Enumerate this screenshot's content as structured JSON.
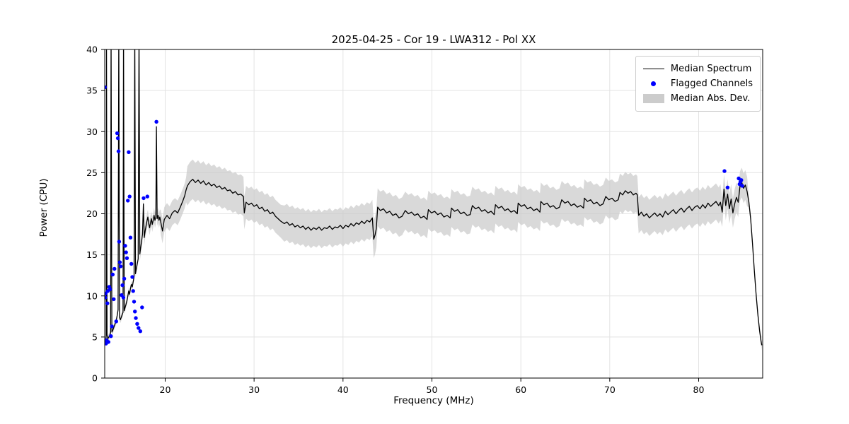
{
  "chart_data": {
    "type": "line",
    "title": "2025-04-25 - Cor 19 - LWA312 - Pol XX",
    "xlabel": "Frequency (MHz)",
    "ylabel": "Power (CPU)",
    "xlim": [
      13.2,
      87.2
    ],
    "ylim": [
      0,
      40
    ],
    "xticks": [
      20,
      30,
      40,
      50,
      60,
      70,
      80
    ],
    "yticks": [
      0,
      5,
      10,
      15,
      20,
      25,
      30,
      35,
      40
    ],
    "grid": true,
    "legend_position": "upper right",
    "colors": {
      "spectrum": "#000000",
      "flagged": "#0000ff",
      "band": "#c9c9c9",
      "grid": "#e3e3e3",
      "frame": "#000000"
    },
    "series": [
      {
        "name": "Median Spectrum",
        "type": "line"
      },
      {
        "name": "Flagged Channels",
        "type": "scatter"
      },
      {
        "name": "Median Abs. Dev.",
        "type": "band"
      }
    ],
    "spectrum_points": [
      [
        13.2,
        4.3
      ],
      [
        13.3,
        4.6
      ],
      [
        13.36,
        5.0
      ],
      [
        13.4,
        42
      ],
      [
        13.46,
        5.2
      ],
      [
        13.56,
        4.8
      ],
      [
        13.66,
        5.0
      ],
      [
        13.76,
        5.2
      ],
      [
        13.86,
        5.5
      ],
      [
        13.92,
        42
      ],
      [
        14.0,
        5.6
      ],
      [
        14.1,
        5.8
      ],
      [
        14.2,
        6.1
      ],
      [
        14.3,
        6.4
      ],
      [
        14.4,
        6.7
      ],
      [
        14.5,
        7.0
      ],
      [
        14.6,
        7.6
      ],
      [
        14.7,
        8.3
      ],
      [
        14.78,
        42
      ],
      [
        14.86,
        7.4
      ],
      [
        14.96,
        7.1
      ],
      [
        15.06,
        7.4
      ],
      [
        15.16,
        7.7
      ],
      [
        15.26,
        8.0
      ],
      [
        15.32,
        42
      ],
      [
        15.4,
        8.2
      ],
      [
        15.5,
        8.6
      ],
      [
        15.6,
        9.0
      ],
      [
        15.7,
        9.4
      ],
      [
        15.8,
        10.0
      ],
      [
        15.9,
        10.6
      ],
      [
        16.0,
        10.2
      ],
      [
        16.1,
        10.9
      ],
      [
        16.2,
        11.4
      ],
      [
        16.3,
        11.1
      ],
      [
        16.4,
        11.7
      ],
      [
        16.5,
        12.3
      ],
      [
        16.58,
        42
      ],
      [
        16.66,
        12.7
      ],
      [
        16.76,
        13.3
      ],
      [
        16.86,
        13.9
      ],
      [
        16.96,
        14.5
      ],
      [
        17.06,
        42
      ],
      [
        17.15,
        15.1
      ],
      [
        17.25,
        15.9
      ],
      [
        17.35,
        16.7
      ],
      [
        17.45,
        17.5
      ],
      [
        17.55,
        21.2
      ],
      [
        17.65,
        17.1
      ],
      [
        17.75,
        17.9
      ],
      [
        17.85,
        18.5
      ],
      [
        17.95,
        19.1
      ],
      [
        18.05,
        19.6
      ],
      [
        18.15,
        18.8
      ],
      [
        18.25,
        18.3
      ],
      [
        18.35,
        18.9
      ],
      [
        18.45,
        19.4
      ],
      [
        18.55,
        18.7
      ],
      [
        18.65,
        19.2
      ],
      [
        18.75,
        19.8
      ],
      [
        18.85,
        19.2
      ],
      [
        18.95,
        19.6
      ],
      [
        19.02,
        30.6
      ],
      [
        19.1,
        19.4
      ],
      [
        19.2,
        19.8
      ],
      [
        19.3,
        19.2
      ],
      [
        19.4,
        19.6
      ],
      [
        19.5,
        19.0
      ],
      [
        19.7,
        17.9
      ],
      [
        19.9,
        19.3
      ],
      [
        20.2,
        19.8
      ],
      [
        20.5,
        19.4
      ],
      [
        20.8,
        20.1
      ],
      [
        21.1,
        20.4
      ],
      [
        21.4,
        20.1
      ],
      [
        21.7,
        20.8
      ],
      [
        22.0,
        21.6
      ],
      [
        22.2,
        22.2
      ],
      [
        22.35,
        22.9
      ],
      [
        22.5,
        23.4
      ],
      [
        22.8,
        23.9
      ],
      [
        23.1,
        24.2
      ],
      [
        23.4,
        23.8
      ],
      [
        23.7,
        24.1
      ],
      [
        24.0,
        23.7
      ],
      [
        24.3,
        24.0
      ],
      [
        24.6,
        23.5
      ],
      [
        24.9,
        23.8
      ],
      [
        25.2,
        23.4
      ],
      [
        25.5,
        23.6
      ],
      [
        25.8,
        23.2
      ],
      [
        26.1,
        23.4
      ],
      [
        26.4,
        23.0
      ],
      [
        26.7,
        23.2
      ],
      [
        27.0,
        22.8
      ],
      [
        27.3,
        22.9
      ],
      [
        27.6,
        22.5
      ],
      [
        27.9,
        22.7
      ],
      [
        28.2,
        22.3
      ],
      [
        28.5,
        22.4
      ],
      [
        28.8,
        22.1
      ],
      [
        28.9,
        20.1
      ],
      [
        29.1,
        21.4
      ],
      [
        29.4,
        21.1
      ],
      [
        29.7,
        21.3
      ],
      [
        30.0,
        20.9
      ],
      [
        30.3,
        21.1
      ],
      [
        30.6,
        20.6
      ],
      [
        30.9,
        20.8
      ],
      [
        31.2,
        20.3
      ],
      [
        31.5,
        20.5
      ],
      [
        31.8,
        20.0
      ],
      [
        32.1,
        20.2
      ],
      [
        32.4,
        19.7
      ],
      [
        32.7,
        19.4
      ],
      [
        33.0,
        19.1
      ],
      [
        33.4,
        18.8
      ],
      [
        33.7,
        19.0
      ],
      [
        34.0,
        18.6
      ],
      [
        34.3,
        18.8
      ],
      [
        34.6,
        18.4
      ],
      [
        34.9,
        18.6
      ],
      [
        35.2,
        18.3
      ],
      [
        35.5,
        18.5
      ],
      [
        35.8,
        18.1
      ],
      [
        36.1,
        18.4
      ],
      [
        36.4,
        18.0
      ],
      [
        36.7,
        18.3
      ],
      [
        37.0,
        18.1
      ],
      [
        37.3,
        18.4
      ],
      [
        37.6,
        18.0
      ],
      [
        37.9,
        18.3
      ],
      [
        38.2,
        18.2
      ],
      [
        38.5,
        18.5
      ],
      [
        38.8,
        18.1
      ],
      [
        39.1,
        18.4
      ],
      [
        39.4,
        18.3
      ],
      [
        39.7,
        18.6
      ],
      [
        40.0,
        18.2
      ],
      [
        40.3,
        18.6
      ],
      [
        40.6,
        18.4
      ],
      [
        40.9,
        18.8
      ],
      [
        41.2,
        18.5
      ],
      [
        41.5,
        18.9
      ],
      [
        41.8,
        18.7
      ],
      [
        42.1,
        19.1
      ],
      [
        42.4,
        18.8
      ],
      [
        42.7,
        19.2
      ],
      [
        43.0,
        19.0
      ],
      [
        43.3,
        19.5
      ],
      [
        43.45,
        16.9
      ],
      [
        43.6,
        17.4
      ],
      [
        43.75,
        18.2
      ],
      [
        43.9,
        20.8
      ],
      [
        44.2,
        20.4
      ],
      [
        44.55,
        20.6
      ],
      [
        44.9,
        20.1
      ],
      [
        45.25,
        20.3
      ],
      [
        45.6,
        19.8
      ],
      [
        45.95,
        20.0
      ],
      [
        46.3,
        19.5
      ],
      [
        46.65,
        19.7
      ],
      [
        47.0,
        20.4
      ],
      [
        47.35,
        20.0
      ],
      [
        47.7,
        20.2
      ],
      [
        48.05,
        19.8
      ],
      [
        48.4,
        20.0
      ],
      [
        48.75,
        19.5
      ],
      [
        49.1,
        19.7
      ],
      [
        49.45,
        19.3
      ],
      [
        49.6,
        20.5
      ],
      [
        49.95,
        20.1
      ],
      [
        50.3,
        20.3
      ],
      [
        50.65,
        19.9
      ],
      [
        51.0,
        20.1
      ],
      [
        51.35,
        19.6
      ],
      [
        51.7,
        19.8
      ],
      [
        52.05,
        19.5
      ],
      [
        52.2,
        20.7
      ],
      [
        52.55,
        20.3
      ],
      [
        52.9,
        20.5
      ],
      [
        53.25,
        20.0
      ],
      [
        53.6,
        20.2
      ],
      [
        53.95,
        19.8
      ],
      [
        54.3,
        19.9
      ],
      [
        54.55,
        21.0
      ],
      [
        54.9,
        20.6
      ],
      [
        55.25,
        20.8
      ],
      [
        55.6,
        20.3
      ],
      [
        55.95,
        20.5
      ],
      [
        56.3,
        20.1
      ],
      [
        56.65,
        20.3
      ],
      [
        57.0,
        19.9
      ],
      [
        57.15,
        21.1
      ],
      [
        57.5,
        20.7
      ],
      [
        57.85,
        20.9
      ],
      [
        58.2,
        20.4
      ],
      [
        58.55,
        20.6
      ],
      [
        58.9,
        20.2
      ],
      [
        59.25,
        20.4
      ],
      [
        59.6,
        20.0
      ],
      [
        59.7,
        21.3
      ],
      [
        60.05,
        20.9
      ],
      [
        60.4,
        21.1
      ],
      [
        60.75,
        20.6
      ],
      [
        61.1,
        20.8
      ],
      [
        61.45,
        20.4
      ],
      [
        61.8,
        20.6
      ],
      [
        62.15,
        20.2
      ],
      [
        62.25,
        21.5
      ],
      [
        62.6,
        21.1
      ],
      [
        62.95,
        21.3
      ],
      [
        63.3,
        20.8
      ],
      [
        63.65,
        21.0
      ],
      [
        64.0,
        20.6
      ],
      [
        64.35,
        20.8
      ],
      [
        64.6,
        21.7
      ],
      [
        64.95,
        21.3
      ],
      [
        65.3,
        21.5
      ],
      [
        65.65,
        21.0
      ],
      [
        66.0,
        21.2
      ],
      [
        66.35,
        20.8
      ],
      [
        66.7,
        21.0
      ],
      [
        67.05,
        20.7
      ],
      [
        67.15,
        21.9
      ],
      [
        67.5,
        21.5
      ],
      [
        67.85,
        21.7
      ],
      [
        68.2,
        21.2
      ],
      [
        68.55,
        21.4
      ],
      [
        68.9,
        21.0
      ],
      [
        69.25,
        21.2
      ],
      [
        69.55,
        22.1
      ],
      [
        69.9,
        21.7
      ],
      [
        70.25,
        21.9
      ],
      [
        70.6,
        21.5
      ],
      [
        70.95,
        21.7
      ],
      [
        71.15,
        22.6
      ],
      [
        71.45,
        22.3
      ],
      [
        71.75,
        22.8
      ],
      [
        72.05,
        22.5
      ],
      [
        72.35,
        22.7
      ],
      [
        72.65,
        22.3
      ],
      [
        72.95,
        22.5
      ],
      [
        73.1,
        22.3
      ],
      [
        73.25,
        19.8
      ],
      [
        73.55,
        20.2
      ],
      [
        73.85,
        19.7
      ],
      [
        74.15,
        20.0
      ],
      [
        74.45,
        19.5
      ],
      [
        74.75,
        19.8
      ],
      [
        75.05,
        20.1
      ],
      [
        75.35,
        19.7
      ],
      [
        75.65,
        20.0
      ],
      [
        75.95,
        19.6
      ],
      [
        76.25,
        20.3
      ],
      [
        76.55,
        19.9
      ],
      [
        76.85,
        20.2
      ],
      [
        77.15,
        20.5
      ],
      [
        77.45,
        20.0
      ],
      [
        77.75,
        20.4
      ],
      [
        78.05,
        20.7
      ],
      [
        78.35,
        20.2
      ],
      [
        78.65,
        20.6
      ],
      [
        78.95,
        20.9
      ],
      [
        79.25,
        20.4
      ],
      [
        79.55,
        20.8
      ],
      [
        79.85,
        21.0
      ],
      [
        80.15,
        20.6
      ],
      [
        80.45,
        21.1
      ],
      [
        80.75,
        20.7
      ],
      [
        81.05,
        21.3
      ],
      [
        81.35,
        20.9
      ],
      [
        81.65,
        21.2
      ],
      [
        81.95,
        21.5
      ],
      [
        82.25,
        21.0
      ],
      [
        82.45,
        21.4
      ],
      [
        82.65,
        20.2
      ],
      [
        82.85,
        23.0
      ],
      [
        83.05,
        21.0
      ],
      [
        83.25,
        22.4
      ],
      [
        83.45,
        20.6
      ],
      [
        83.65,
        21.8
      ],
      [
        83.85,
        20.1
      ],
      [
        84.05,
        21.2
      ],
      [
        84.25,
        22.0
      ],
      [
        84.45,
        21.4
      ],
      [
        84.65,
        23.4
      ],
      [
        84.85,
        23.8
      ],
      [
        85.05,
        23.1
      ],
      [
        85.25,
        23.5
      ],
      [
        85.45,
        22.7
      ],
      [
        85.65,
        21.4
      ],
      [
        85.85,
        19.4
      ],
      [
        86.05,
        16.5
      ],
      [
        86.25,
        13.2
      ],
      [
        86.45,
        10.3
      ],
      [
        86.65,
        7.8
      ],
      [
        86.85,
        5.8
      ],
      [
        87.0,
        4.6
      ],
      [
        87.1,
        4.0
      ]
    ],
    "mad_segments": [
      [
        13.2,
        17.0,
        0.4
      ],
      [
        17.0,
        19.4,
        0.9
      ],
      [
        19.4,
        22.4,
        1.5
      ],
      [
        22.4,
        28.85,
        2.4
      ],
      [
        28.85,
        33.2,
        2.0
      ],
      [
        33.2,
        43.4,
        2.2
      ],
      [
        43.4,
        73.2,
        2.3
      ],
      [
        73.2,
        82.5,
        2.2
      ],
      [
        82.5,
        85.6,
        1.8
      ],
      [
        85.6,
        87.2,
        0.6
      ]
    ],
    "flagged_points": [
      [
        13.22,
        35.4
      ],
      [
        13.26,
        9.8
      ],
      [
        13.3,
        10.3
      ],
      [
        13.34,
        4.2
      ],
      [
        13.42,
        4.6
      ],
      [
        13.5,
        9.1
      ],
      [
        13.55,
        10.6
      ],
      [
        13.62,
        4.4
      ],
      [
        13.7,
        11.1
      ],
      [
        13.8,
        10.8
      ],
      [
        13.9,
        5.1
      ],
      [
        14.0,
        6.3
      ],
      [
        14.1,
        12.6
      ],
      [
        14.22,
        9.6
      ],
      [
        14.3,
        13.3
      ],
      [
        14.5,
        6.9
      ],
      [
        14.6,
        29.8
      ],
      [
        14.68,
        29.2
      ],
      [
        14.75,
        27.6
      ],
      [
        14.82,
        16.6
      ],
      [
        14.9,
        14.1
      ],
      [
        15.0,
        13.6
      ],
      [
        15.1,
        10.1
      ],
      [
        15.2,
        11.3
      ],
      [
        15.3,
        9.8
      ],
      [
        15.4,
        12.1
      ],
      [
        15.5,
        16.1
      ],
      [
        15.6,
        15.3
      ],
      [
        15.7,
        14.6
      ],
      [
        15.8,
        21.6
      ],
      [
        15.9,
        27.5
      ],
      [
        16.0,
        22.1
      ],
      [
        16.1,
        17.1
      ],
      [
        16.2,
        13.9
      ],
      [
        16.3,
        12.3
      ],
      [
        16.4,
        10.6
      ],
      [
        16.5,
        9.3
      ],
      [
        16.6,
        8.1
      ],
      [
        16.7,
        7.3
      ],
      [
        16.85,
        6.6
      ],
      [
        17.0,
        6.1
      ],
      [
        17.2,
        5.7
      ],
      [
        17.4,
        8.6
      ],
      [
        17.58,
        21.9
      ],
      [
        18.0,
        22.1
      ],
      [
        19.02,
        31.2
      ],
      [
        82.9,
        25.2
      ],
      [
        83.25,
        23.2
      ],
      [
        84.5,
        24.3
      ],
      [
        84.6,
        23.6
      ],
      [
        84.7,
        23.9
      ],
      [
        84.8,
        24.1
      ],
      [
        84.9,
        23.4
      ]
    ]
  }
}
